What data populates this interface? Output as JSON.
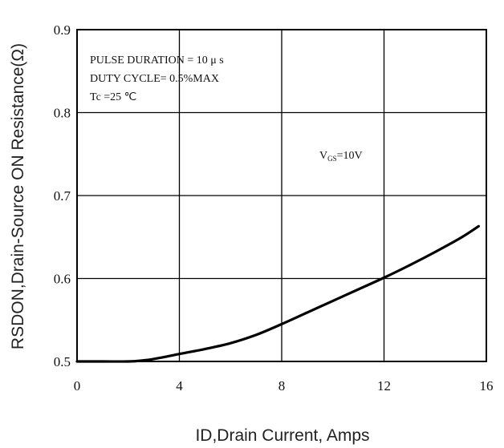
{
  "chart_data": {
    "type": "line",
    "xlabel": "ID,Drain Current, Amps",
    "ylabel": "RSDON,Drain-Source ON Resistance(Ω)",
    "xlim": [
      0,
      16
    ],
    "ylim": [
      0.5,
      0.9
    ],
    "x_ticks": [
      "0",
      "4",
      "8",
      "12",
      "16"
    ],
    "y_ticks": [
      "0.5",
      "0.6",
      "0.7",
      "0.8",
      "0.9"
    ],
    "grid": true,
    "annotations": {
      "line1": "PULSE   DURATION = 10 μ s",
      "line2": "DUTY   CYCLE= 0.5%MAX",
      "line3": "Tc =25  ℃"
    },
    "vgs_label": {
      "v": "V",
      "sub": "GS",
      "rest": "=10V"
    },
    "series": [
      {
        "x": [
          0,
          1,
          2,
          2.5,
          3,
          4,
          5,
          6,
          7,
          8,
          9,
          10,
          11,
          12,
          13,
          14,
          15,
          15.7
        ],
        "y": [
          0.5,
          0.5,
          0.5,
          0.501,
          0.503,
          0.509,
          0.515,
          0.522,
          0.532,
          0.545,
          0.559,
          0.573,
          0.587,
          0.601,
          0.616,
          0.632,
          0.649,
          0.663
        ],
        "color": "#000000"
      }
    ]
  }
}
